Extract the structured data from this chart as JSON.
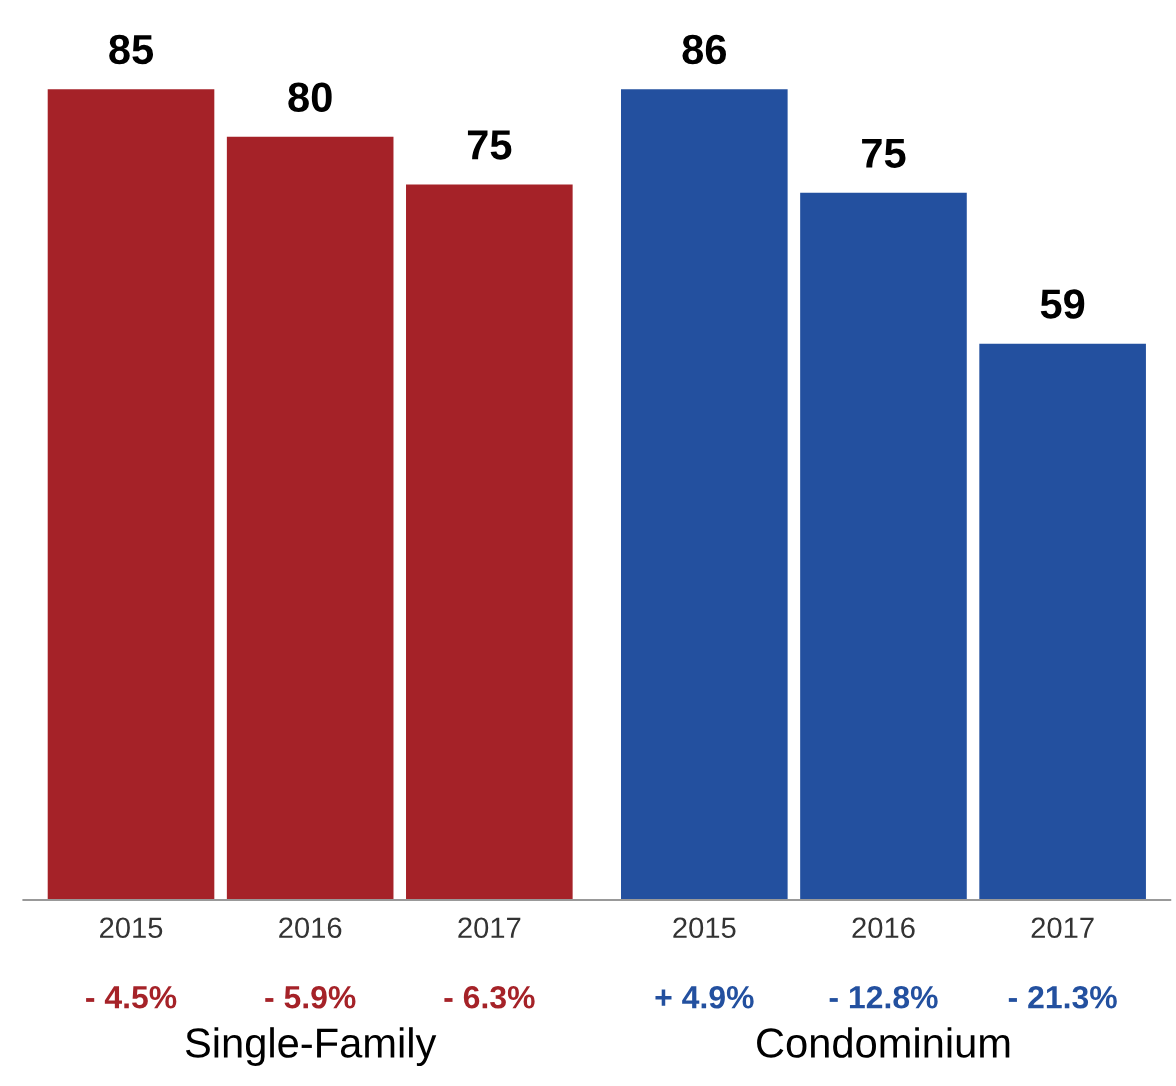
{
  "chart_data": [
    {
      "type": "bar",
      "categories": [
        "2015",
        "2016",
        "2017"
      ],
      "values": [
        85,
        80,
        75
      ],
      "color": "#a52228",
      "data_labels": true,
      "xlabel": "Single-Family",
      "grid": false,
      "legend": false,
      "annotations": [
        "- 4.5%",
        "- 5.9%",
        "- 6.3%"
      ]
    },
    {
      "type": "bar",
      "categories": [
        "2015",
        "2016",
        "2017"
      ],
      "values": [
        86,
        75,
        59
      ],
      "color": "#23509f",
      "data_labels": true,
      "xlabel": "Condominium",
      "grid": false,
      "legend": false,
      "annotations": [
        "+ 4.9%",
        "- 12.8%",
        "- 21.3%"
      ]
    }
  ]
}
